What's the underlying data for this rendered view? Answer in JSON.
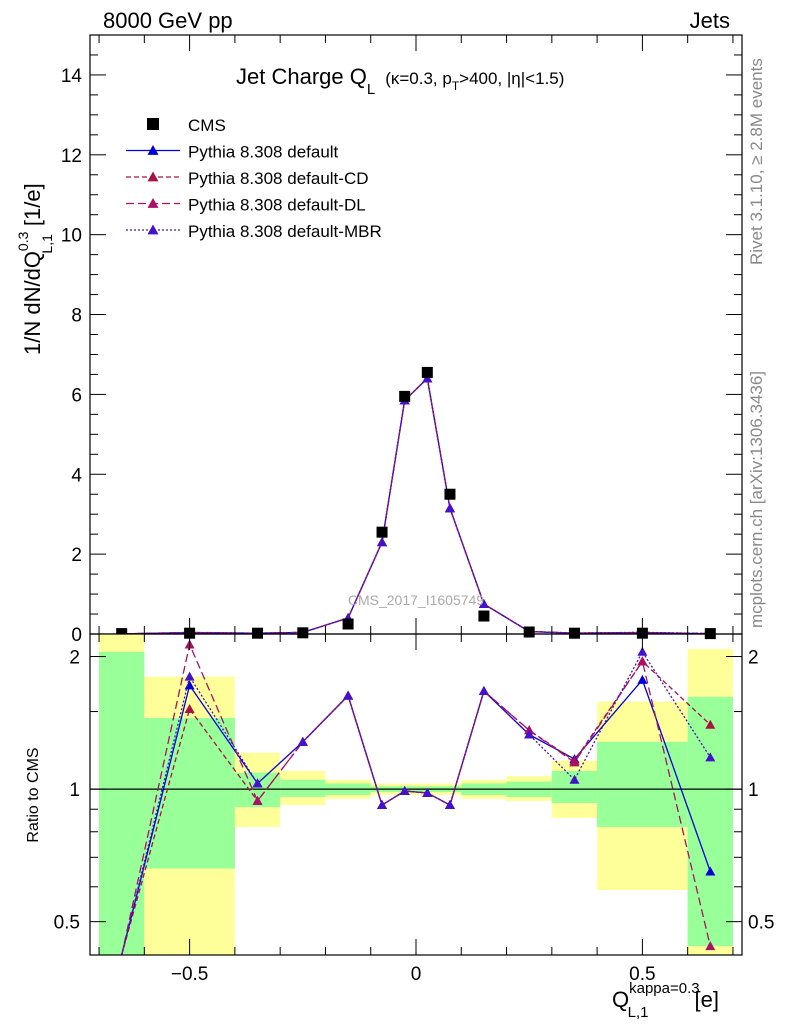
{
  "header": {
    "left": "8000 GeV pp",
    "right": "Jets"
  },
  "side_labels": {
    "rivet": "Rivet 3.1.10, ≥ 2.8M events",
    "mcplots": "mcplots.cern.ch [arXiv:1306.3436]"
  },
  "title": {
    "main": "Jet Charge Q",
    "main_sub": "L",
    "params": "(κ=0.3, p",
    "params_sub": "T",
    "params_tail": ">400, |η|<1.5)"
  },
  "watermark": "CMS_2017_I1605749",
  "legend": {
    "items": [
      {
        "label": "CMS",
        "color": "#000000",
        "marker": "square",
        "dash": ""
      },
      {
        "label": "Pythia 8.308 default",
        "color": "#0000dd",
        "marker": "triangle",
        "dash": ""
      },
      {
        "label": "Pythia 8.308 default-CD",
        "color": "#aa1144",
        "marker": "triangle",
        "dash": "5,3"
      },
      {
        "label": "Pythia 8.308 default-DL",
        "color": "#aa1166",
        "marker": "triangle",
        "dash": "8,4"
      },
      {
        "label": "Pythia 8.308 default-MBR",
        "color": "#4411cc",
        "marker": "triangle",
        "dash": "2,2"
      }
    ]
  },
  "axes": {
    "ylabel_main": "1/N dN/dQ",
    "ylabel_main_sup": "0.3",
    "ylabel_main_sub": "L,1",
    "ylabel_main_unit": "[1/e]",
    "ylabel_ratio": "Ratio to CMS",
    "xlabel": "Q",
    "xlabel_sup": "kappa=0.3",
    "xlabel_sub": "L,1",
    "xlabel_unit": "[e]",
    "main_yticks": [
      "0",
      "2",
      "4",
      "6",
      "8",
      "10",
      "12",
      "14"
    ],
    "ratio_yticks": [
      "0.5",
      "1",
      "2"
    ],
    "xticks": [
      "−0.5",
      "0",
      "0.5"
    ]
  },
  "chart_data": [
    {
      "type": "scatter",
      "xlim": [
        -0.72,
        0.72
      ],
      "ylim": [
        0,
        15
      ],
      "series": [
        {
          "name": "CMS",
          "color": "#000000",
          "x": [
            -0.65,
            -0.5,
            -0.35,
            -0.25,
            -0.15,
            -0.075,
            -0.025,
            0.025,
            0.075,
            0.15,
            0.25,
            0.35,
            0.5,
            0.65
          ],
          "values": [
            0.01,
            0.02,
            0.02,
            0.03,
            0.25,
            2.55,
            5.95,
            6.55,
            3.5,
            0.45,
            0.05,
            0.02,
            0.02,
            0.01
          ]
        },
        {
          "name": "Pythia 8.308 default",
          "color": "#0000dd",
          "x": [
            -0.65,
            -0.5,
            -0.35,
            -0.25,
            -0.15,
            -0.075,
            -0.025,
            0.025,
            0.075,
            0.15,
            0.25,
            0.35,
            0.5,
            0.65
          ],
          "values": [
            0.003,
            0.035,
            0.02,
            0.04,
            0.4,
            2.3,
            5.85,
            6.4,
            3.15,
            0.75,
            0.06,
            0.02,
            0.035,
            0.006
          ]
        },
        {
          "name": "Pythia 8.308 default-CD",
          "color": "#aa1144",
          "x": [
            -0.65,
            -0.5,
            -0.35,
            -0.25,
            -0.15,
            -0.075,
            -0.025,
            0.025,
            0.075,
            0.15,
            0.25,
            0.35,
            0.5,
            0.65
          ],
          "values": [
            0.003,
            0.03,
            0.019,
            0.04,
            0.4,
            2.3,
            5.85,
            6.4,
            3.15,
            0.75,
            0.065,
            0.022,
            0.038,
            0.012
          ]
        },
        {
          "name": "Pythia 8.308 default-DL",
          "color": "#aa1166",
          "x": [
            -0.65,
            -0.5,
            -0.35,
            -0.25,
            -0.15,
            -0.075,
            -0.025,
            0.025,
            0.075,
            0.15,
            0.25,
            0.35,
            0.5,
            0.65
          ],
          "values": [
            0.003,
            0.042,
            0.019,
            0.04,
            0.4,
            2.3,
            5.85,
            6.4,
            3.15,
            0.75,
            0.065,
            0.022,
            0.038,
            0.005
          ]
        },
        {
          "name": "Pythia 8.308 default-MBR",
          "color": "#4411cc",
          "x": [
            -0.65,
            -0.5,
            -0.35,
            -0.25,
            -0.15,
            -0.075,
            -0.025,
            0.025,
            0.075,
            0.15,
            0.25,
            0.35,
            0.5,
            0.65
          ],
          "values": [
            0.003,
            0.036,
            0.02,
            0.04,
            0.4,
            2.3,
            5.85,
            6.4,
            3.15,
            0.75,
            0.065,
            0.022,
            0.042,
            0.012
          ]
        }
      ]
    },
    {
      "type": "line",
      "ylabel": "Ratio to CMS",
      "ylim": [
        0.42,
        2.25
      ],
      "log_scale": true,
      "reference_line": 1,
      "bands": [
        {
          "x0": -0.7,
          "x1": -0.6,
          "inner": [
            0.2,
            2.05
          ],
          "outer": [
            0.2,
            2.35
          ]
        },
        {
          "x0": -0.6,
          "x1": -0.4,
          "inner": [
            0.66,
            1.45
          ],
          "outer": [
            0.2,
            1.8
          ]
        },
        {
          "x0": -0.4,
          "x1": -0.3,
          "inner": [
            0.91,
            1.09
          ],
          "outer": [
            0.82,
            1.21
          ]
        },
        {
          "x0": -0.3,
          "x1": -0.2,
          "inner": [
            0.96,
            1.05
          ],
          "outer": [
            0.92,
            1.1
          ]
        },
        {
          "x0": -0.2,
          "x1": -0.1,
          "inner": [
            0.97,
            1.03
          ],
          "outer": [
            0.95,
            1.05
          ]
        },
        {
          "x0": -0.1,
          "x1": 0.1,
          "inner": [
            0.985,
            1.015
          ],
          "outer": [
            0.97,
            1.03
          ]
        },
        {
          "x0": 0.1,
          "x1": 0.2,
          "inner": [
            0.97,
            1.03
          ],
          "outer": [
            0.95,
            1.05
          ]
        },
        {
          "x0": 0.2,
          "x1": 0.3,
          "inner": [
            0.96,
            1.04
          ],
          "outer": [
            0.94,
            1.07
          ]
        },
        {
          "x0": 0.3,
          "x1": 0.4,
          "inner": [
            0.93,
            1.1
          ],
          "outer": [
            0.86,
            1.16
          ]
        },
        {
          "x0": 0.4,
          "x1": 0.6,
          "inner": [
            0.82,
            1.28
          ],
          "outer": [
            0.59,
            1.58
          ]
        },
        {
          "x0": 0.6,
          "x1": 0.7,
          "inner": [
            0.44,
            1.62
          ],
          "outer": [
            0.3,
            2.08
          ]
        }
      ],
      "x": [
        -0.65,
        -0.5,
        -0.35,
        -0.25,
        -0.15,
        -0.075,
        -0.025,
        0.025,
        0.075,
        0.15,
        0.25,
        0.35,
        0.5,
        0.65
      ],
      "series": [
        {
          "name": "Pythia 8.308 default",
          "color": "#0000dd",
          "dash": "",
          "values": [
            0.3,
            1.72,
            1.03,
            1.28,
            1.63,
            0.92,
            0.99,
            0.98,
            0.92,
            1.67,
            1.33,
            1.17,
            1.77,
            0.65
          ]
        },
        {
          "name": "Pythia 8.308 default-CD",
          "color": "#aa1144",
          "dash": "5,3",
          "values": [
            0.3,
            1.52,
            0.94,
            1.28,
            1.63,
            0.92,
            0.99,
            0.98,
            0.92,
            1.67,
            1.36,
            1.16,
            1.95,
            1.4
          ]
        },
        {
          "name": "Pythia 8.308 default-DL",
          "color": "#aa1166",
          "dash": "8,4",
          "values": [
            0.3,
            2.13,
            0.94,
            1.28,
            1.63,
            0.92,
            0.99,
            0.98,
            0.92,
            1.67,
            1.36,
            1.15,
            1.95,
            0.44
          ]
        },
        {
          "name": "Pythia 8.308 default-MBR",
          "color": "#4411cc",
          "dash": "2,2",
          "values": [
            0.3,
            1.8,
            1.03,
            1.28,
            1.63,
            0.92,
            0.99,
            0.98,
            0.92,
            1.67,
            1.33,
            1.05,
            2.05,
            1.18
          ]
        }
      ]
    }
  ]
}
